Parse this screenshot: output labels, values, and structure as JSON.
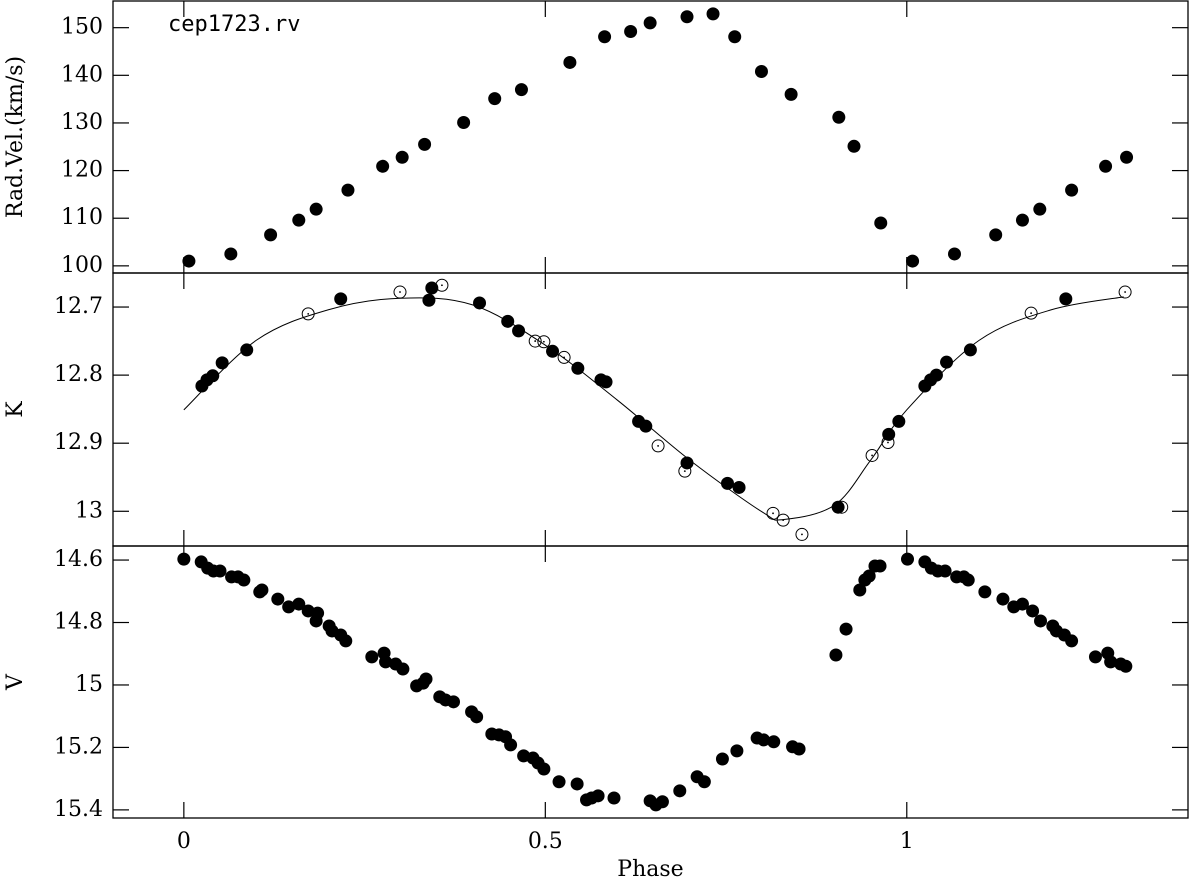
{
  "chart_data": [
    {
      "type": "scatter",
      "title": "cep1723.rv",
      "ylabel": "Rad.Vel.(km/s)",
      "xlim": [
        -0.098,
        1.389
      ],
      "ylim": [
        98.5,
        155.6
      ],
      "xticks": [
        0,
        0.5,
        1
      ],
      "yticks": [
        100,
        110,
        120,
        130,
        140,
        150
      ],
      "series": [
        {
          "marker": "filled",
          "color": "#000000",
          "x": [
            0.007,
            0.065,
            0.12,
            0.159,
            0.183,
            0.227,
            0.275,
            0.302,
            0.333,
            0.387,
            0.43,
            0.467,
            0.534,
            0.582,
            0.618,
            0.645,
            0.696,
            0.732,
            0.762,
            0.799,
            0.84,
            0.906,
            0.927,
            0.964,
            1.008,
            1.066,
            1.123,
            1.16,
            1.184,
            1.228,
            1.275,
            1.304
          ],
          "values": [
            101.0,
            102.5,
            106.5,
            109.6,
            111.9,
            115.9,
            120.9,
            122.8,
            125.5,
            130.1,
            135.1,
            137.0,
            142.7,
            148.1,
            149.2,
            151.0,
            152.3,
            152.9,
            148.1,
            140.8,
            136.0,
            131.2,
            125.1,
            109.0,
            101.0,
            102.5,
            106.5,
            109.6,
            111.9,
            115.9,
            120.9,
            122.8
          ]
        }
      ]
    },
    {
      "type": "scatter",
      "ylabel": "K",
      "xlim": [
        -0.098,
        1.389
      ],
      "ylim": [
        13.051,
        12.65
      ],
      "xticks": [
        0,
        0.5,
        1
      ],
      "yticks": [
        12.7,
        12.8,
        12.9,
        13
      ],
      "series": [
        {
          "marker": "filled",
          "color": "#000000",
          "x": [
            0.025,
            0.032,
            0.04,
            0.053,
            0.087,
            0.217,
            0.339,
            0.343,
            0.409,
            0.448,
            0.463,
            0.51,
            0.545,
            0.577,
            0.584,
            0.629,
            0.639,
            0.696,
            0.752,
            0.768,
            0.905,
            0.975,
            0.989,
            1.025,
            1.033,
            1.041,
            1.055,
            1.088,
            1.22
          ],
          "values": [
            12.816,
            12.807,
            12.801,
            12.782,
            12.763,
            12.688,
            12.69,
            12.672,
            12.694,
            12.721,
            12.735,
            12.765,
            12.79,
            12.807,
            12.81,
            12.868,
            12.875,
            12.929,
            12.959,
            12.965,
            12.994,
            12.887,
            12.868,
            12.816,
            12.807,
            12.8,
            12.781,
            12.763,
            12.688
          ]
        },
        {
          "marker": "open",
          "color": "#000000",
          "x": [
            0.172,
            0.299,
            0.357,
            0.486,
            0.498,
            0.526,
            0.656,
            0.693,
            0.815,
            0.829,
            0.855,
            0.91,
            0.952,
            0.974,
            1.172,
            1.302
          ],
          "values": [
            12.71,
            12.678,
            12.668,
            12.75,
            12.751,
            12.774,
            12.904,
            12.941,
            13.003,
            13.013,
            13.034,
            12.994,
            12.918,
            12.899,
            12.709,
            12.678
          ]
        },
        {
          "marker": "line",
          "color": "#000000",
          "x": [
            0,
            0.1,
            0.2,
            0.3,
            0.4,
            0.5,
            0.6,
            0.7,
            0.8,
            0.83,
            0.9,
            0.95,
            1.0,
            1.1,
            1.2,
            1.3
          ],
          "values": [
            12.851,
            12.749,
            12.704,
            12.687,
            12.697,
            12.756,
            12.837,
            12.925,
            13.001,
            13.012,
            12.991,
            12.925,
            12.851,
            12.749,
            12.704,
            12.685
          ]
        }
      ]
    },
    {
      "type": "scatter",
      "ylabel": "V",
      "xlabel": "Phase",
      "xlim": [
        -0.098,
        1.389
      ],
      "ylim": [
        15.426,
        14.555
      ],
      "xticks": [
        0,
        0.5,
        1
      ],
      "yticks": [
        14.6,
        14.8,
        15,
        15.2,
        15.4
      ],
      "series": [
        {
          "marker": "filled",
          "color": "#000000",
          "x": [
            0.0,
            0.024,
            0.033,
            0.041,
            0.05,
            0.066,
            0.075,
            0.083,
            0.105,
            0.108,
            0.13,
            0.145,
            0.159,
            0.172,
            0.183,
            0.185,
            0.201,
            0.205,
            0.217,
            0.224,
            0.26,
            0.277,
            0.279,
            0.293,
            0.303,
            0.322,
            0.331,
            0.335,
            0.354,
            0.362,
            0.373,
            0.398,
            0.405,
            0.426,
            0.436,
            0.445,
            0.452,
            0.47,
            0.483,
            0.49,
            0.498,
            0.519,
            0.544,
            0.557,
            0.564,
            0.573,
            0.595,
            0.645,
            0.653,
            0.662,
            0.686,
            0.71,
            0.72,
            0.745,
            0.765,
            0.793,
            0.802,
            0.816,
            0.842,
            0.851,
            0.902,
            0.916,
            0.935,
            0.942,
            0.948,
            0.956,
            0.963,
            1.001,
            1.025,
            1.034,
            1.043,
            1.053,
            1.069,
            1.079,
            1.085,
            1.108,
            1.133,
            1.148,
            1.16,
            1.174,
            1.185,
            1.202,
            1.207,
            1.218,
            1.228,
            1.261,
            1.278,
            1.282,
            1.296,
            1.303
          ],
          "values": [
            14.597,
            14.606,
            14.626,
            14.635,
            14.635,
            14.654,
            14.654,
            14.664,
            14.702,
            14.696,
            14.725,
            14.75,
            14.741,
            14.763,
            14.795,
            14.77,
            14.811,
            14.827,
            14.84,
            14.859,
            14.91,
            14.898,
            14.926,
            14.933,
            14.949,
            15.003,
            14.994,
            14.981,
            15.038,
            15.048,
            15.054,
            15.086,
            15.102,
            15.157,
            15.16,
            15.166,
            15.192,
            15.227,
            15.234,
            15.25,
            15.269,
            15.31,
            15.317,
            15.368,
            15.362,
            15.355,
            15.362,
            15.371,
            15.384,
            15.374,
            15.339,
            15.294,
            15.31,
            15.237,
            15.211,
            15.17,
            15.176,
            15.182,
            15.198,
            15.205,
            14.904,
            14.821,
            14.696,
            14.664,
            14.651,
            14.619,
            14.619,
            14.597,
            14.606,
            14.626,
            14.635,
            14.635,
            14.654,
            14.654,
            14.664,
            14.702,
            14.725,
            14.75,
            14.741,
            14.763,
            14.795,
            14.811,
            14.827,
            14.84,
            14.859,
            14.91,
            14.898,
            14.926,
            14.933,
            14.94
          ]
        }
      ]
    }
  ]
}
